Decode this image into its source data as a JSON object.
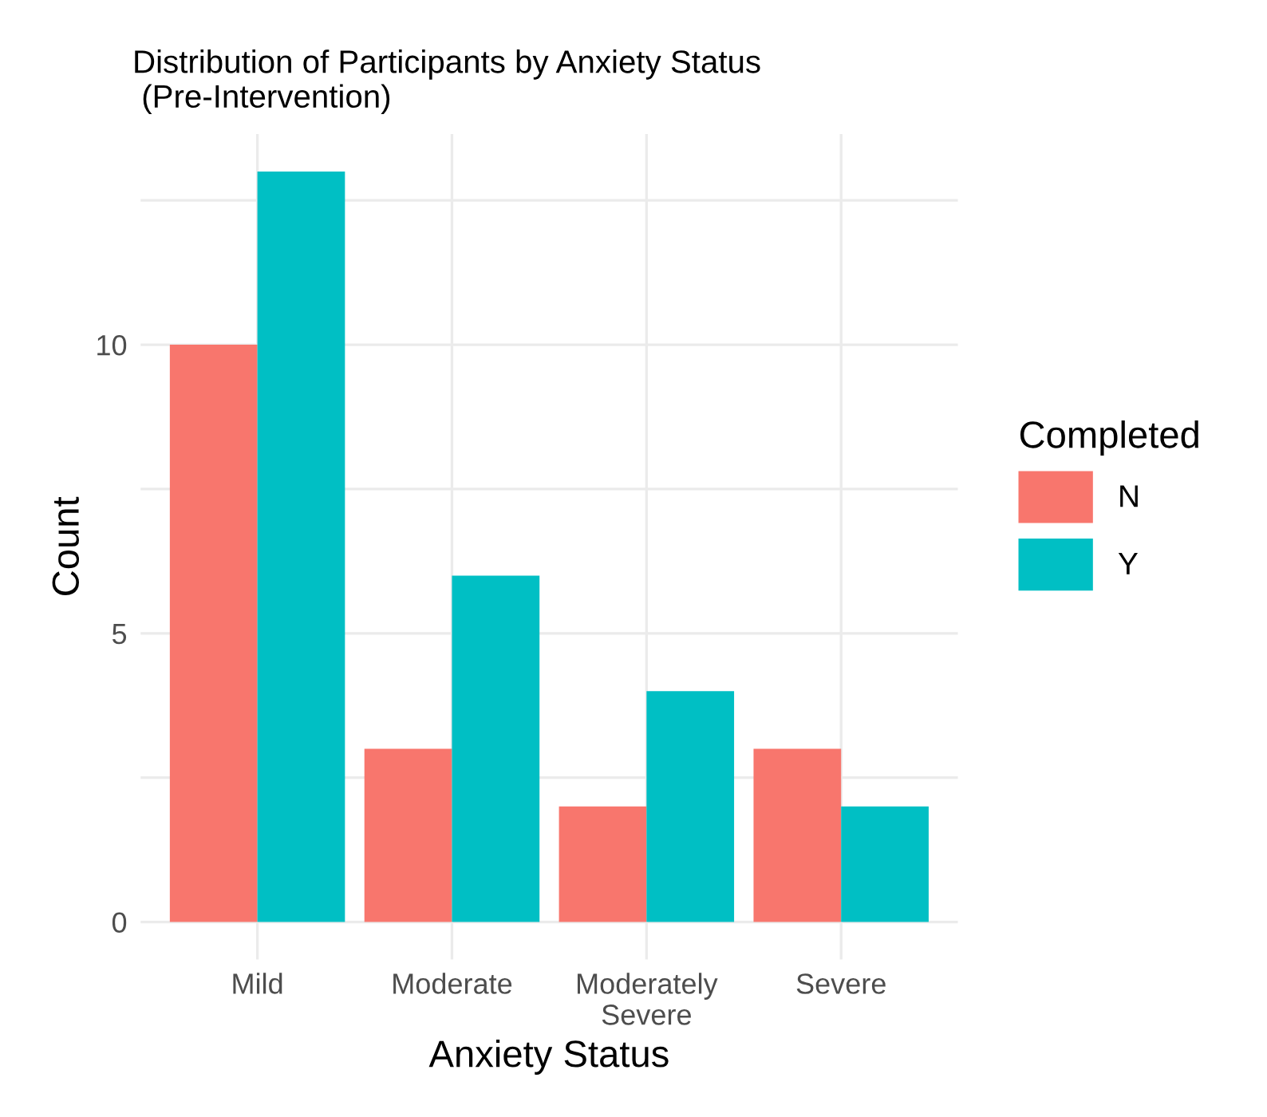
{
  "chart_data": {
    "type": "bar",
    "title": "Distribution of Participants by Anxiety Status\n (Pre-Intervention)",
    "xlabel": "Anxiety Status",
    "ylabel": "Count",
    "legend_title": "Completed",
    "categories": [
      "Mild",
      "Moderate",
      "Moderately\nSevere",
      "Severe"
    ],
    "series": [
      {
        "name": "N",
        "color": "#f8766d",
        "values": [
          10,
          3,
          2,
          3
        ]
      },
      {
        "name": "Y",
        "color": "#00bfc4",
        "values": [
          13,
          6,
          4,
          2
        ]
      }
    ],
    "ylim": [
      -0.65,
      13.65
    ],
    "yticks": [
      0,
      {
        "value": 2.5,
        "label": null
      },
      5,
      {
        "value": 7.5,
        "label": null
      },
      10,
      {
        "value": 12.5,
        "label": null
      }
    ],
    "grid": true,
    "legend": "right"
  }
}
